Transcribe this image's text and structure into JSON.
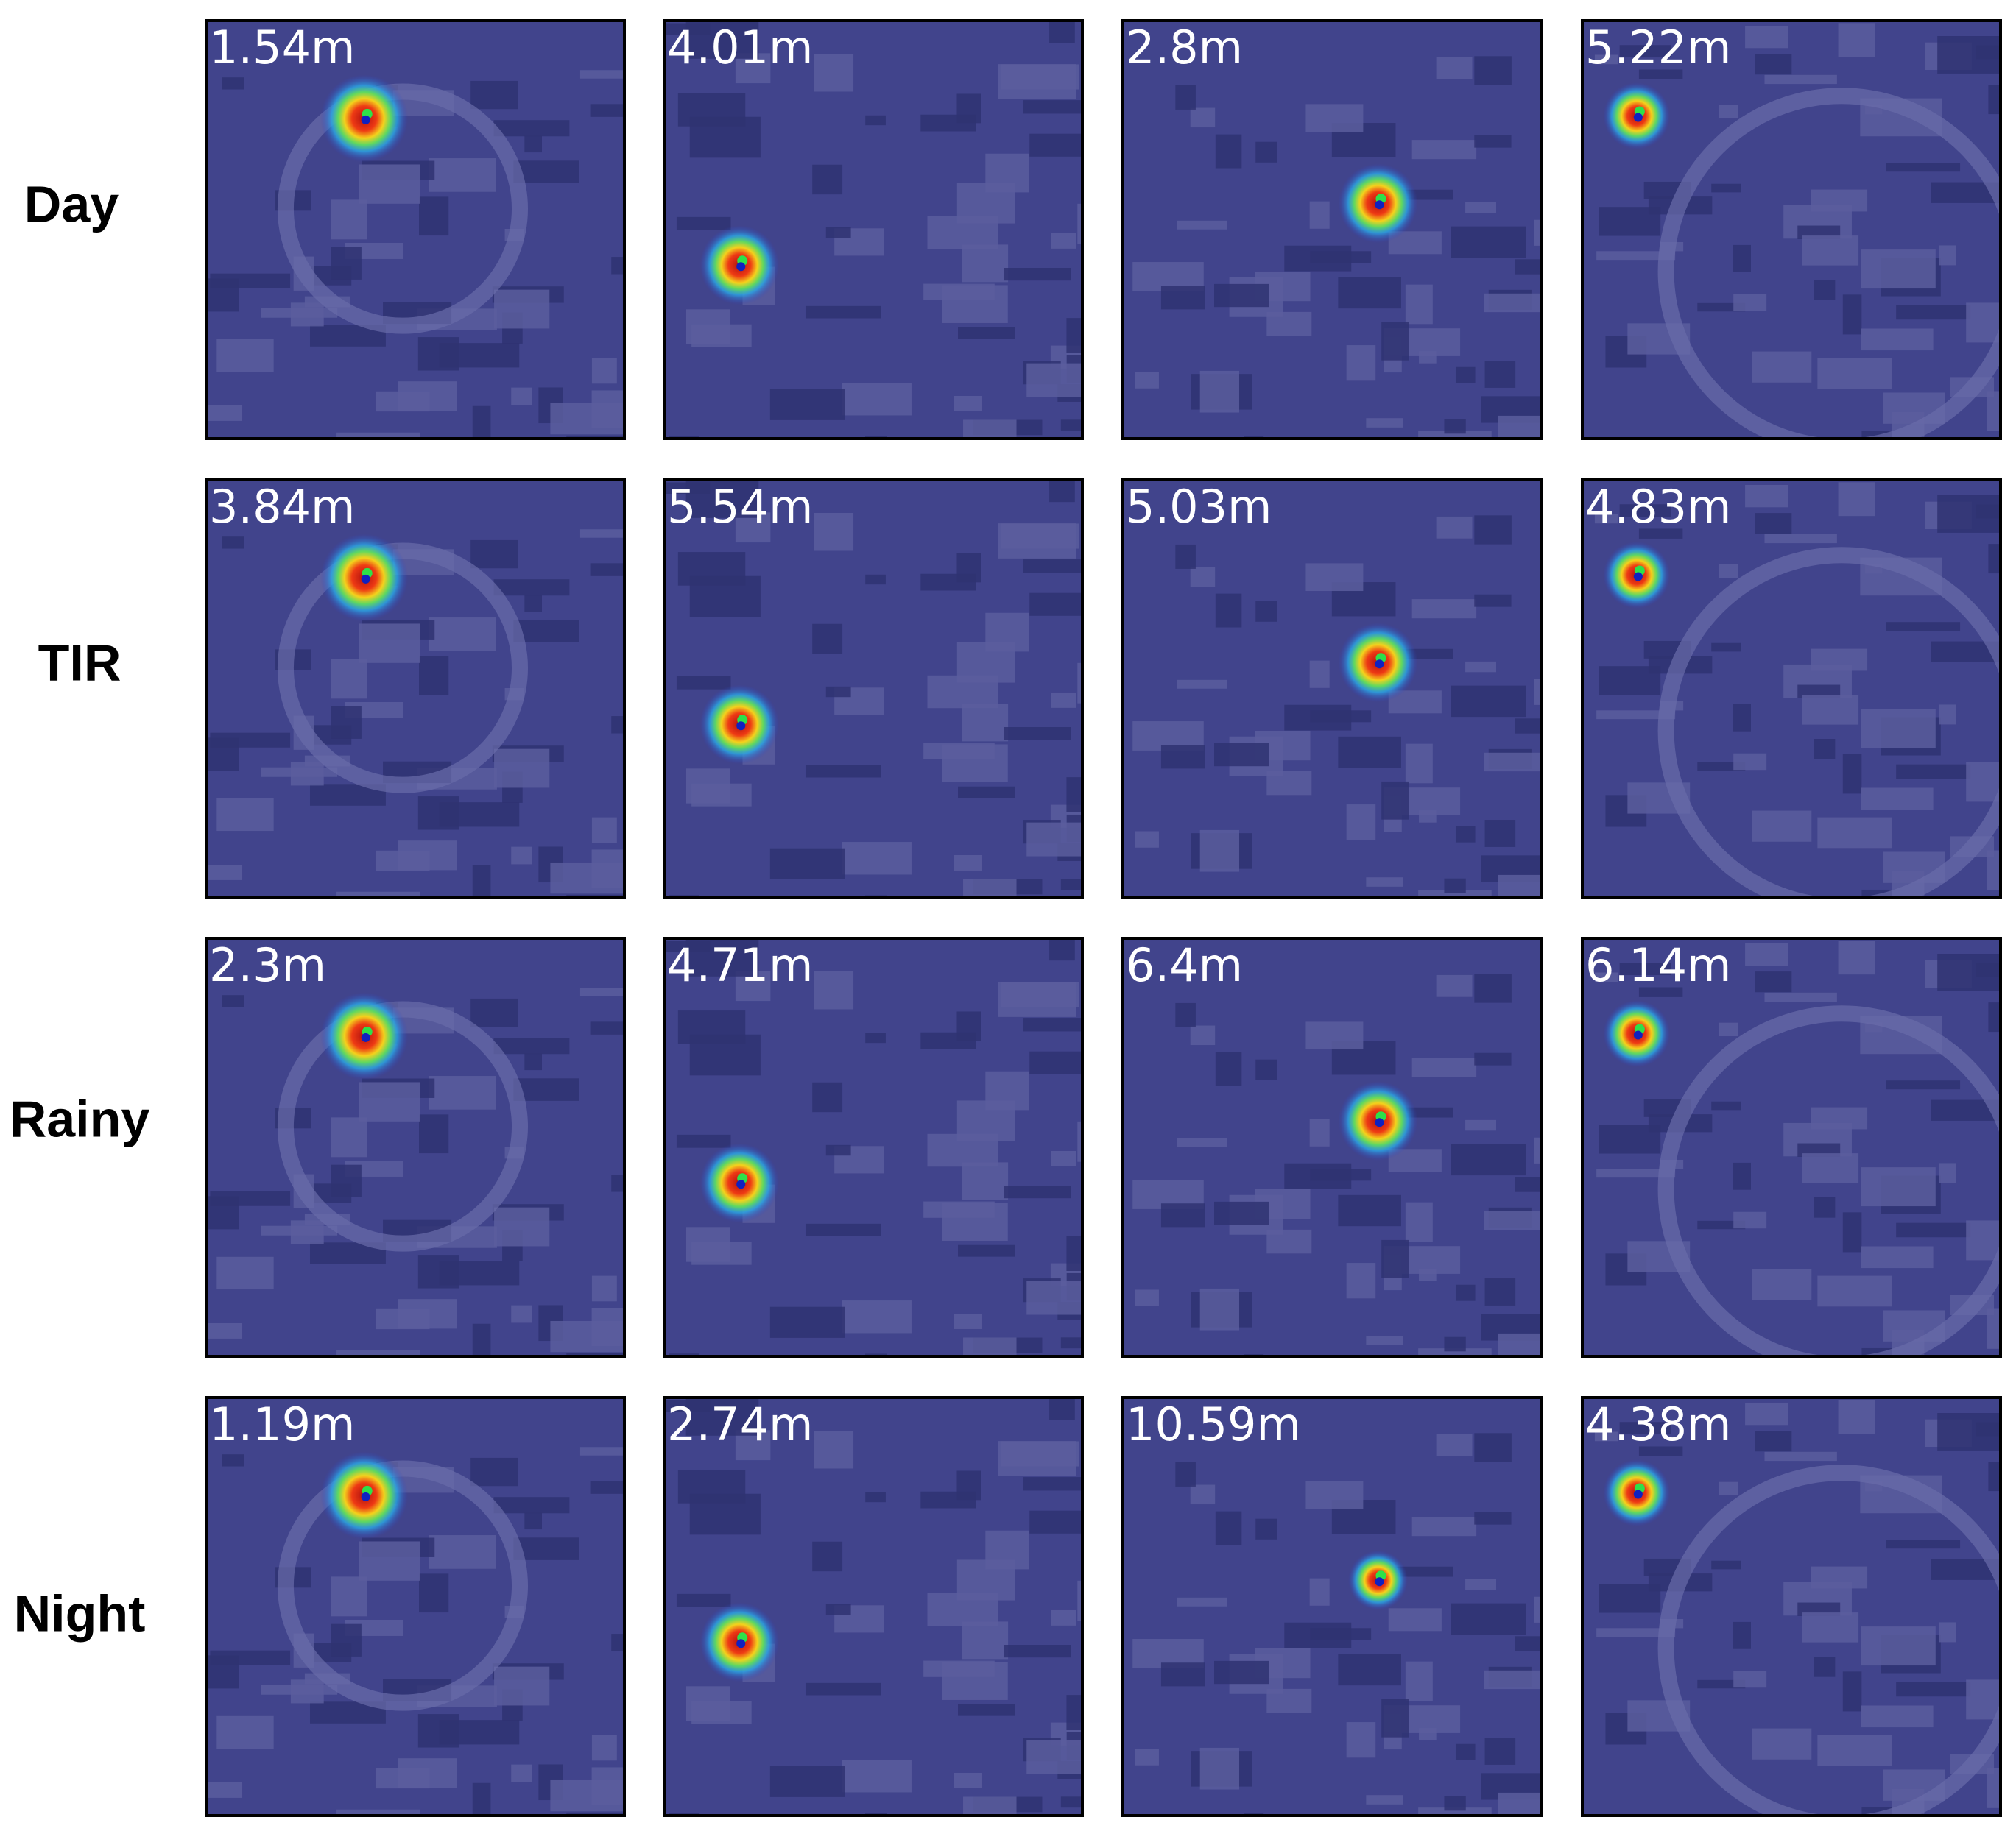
{
  "rows": [
    {
      "label": "Day",
      "errors": [
        "1.54m",
        "4.01m",
        "2.8m",
        "5.22m"
      ]
    },
    {
      "label": "TIR",
      "errors": [
        "3.84m",
        "5.54m",
        "5.03m",
        "4.83m"
      ]
    },
    {
      "label": "Rainy",
      "errors": [
        "2.3m",
        "4.71m",
        "6.4m",
        "6.14m"
      ]
    },
    {
      "label": "Night",
      "errors": [
        "1.19m",
        "2.74m",
        "10.59m",
        "4.38m"
      ]
    }
  ]
}
